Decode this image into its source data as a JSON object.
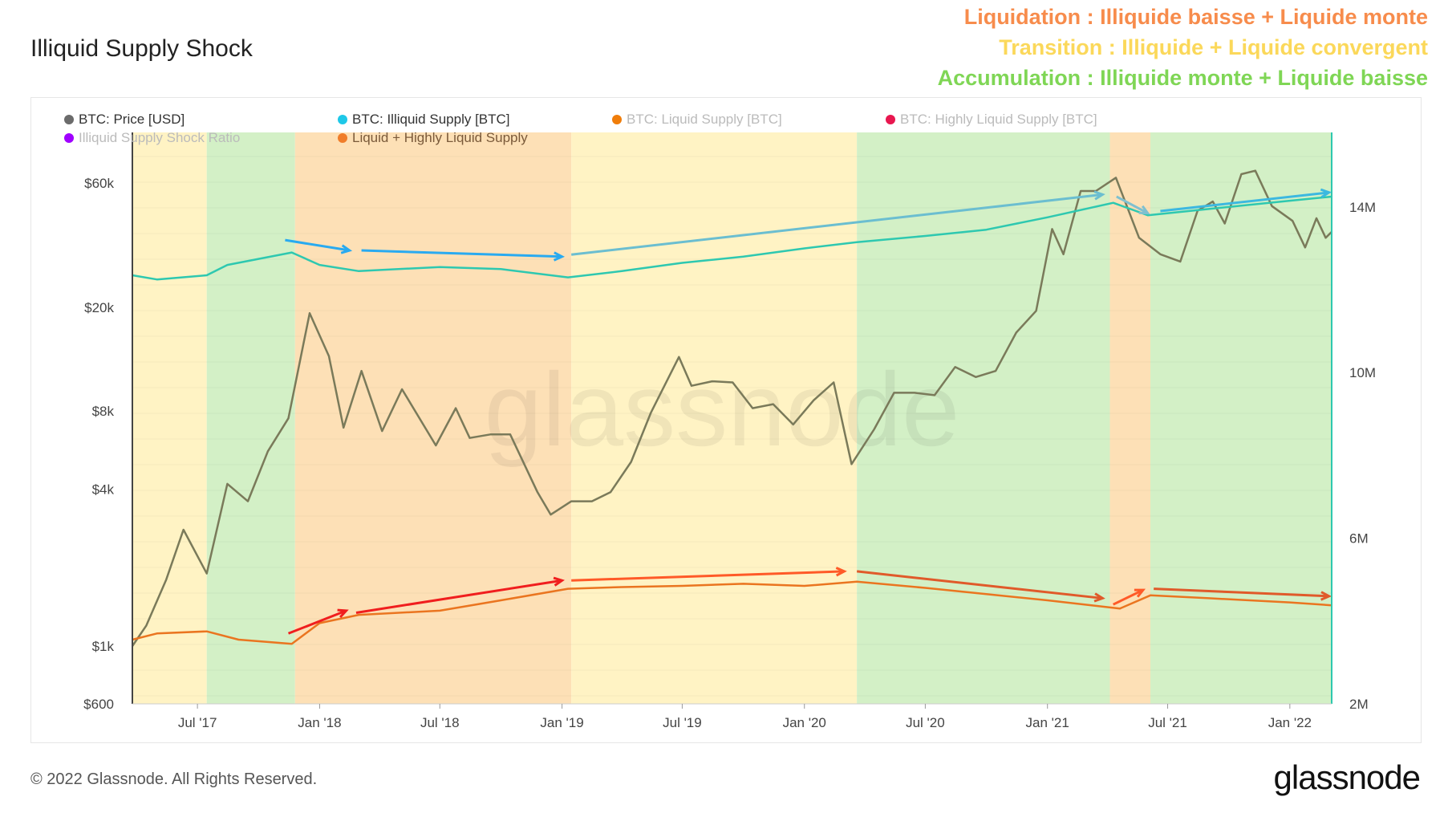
{
  "title": "Illiquid Supply Shock",
  "notes": [
    {
      "text": "Liquidation : Illiquide baisse + Liquide monte",
      "color": "#f78c4c"
    },
    {
      "text": "Transition : Illiquide + Liquide convergent",
      "color": "#fbd85a"
    },
    {
      "text": "Accumulation : Illiquide monte + Liquide baisse",
      "color": "#7fd655"
    }
  ],
  "legend": [
    {
      "label": "BTC: Price [USD]",
      "color": "#6b6b6b",
      "active": true
    },
    {
      "label": "BTC: Illiquid Supply [BTC]",
      "color": "#1ec8e8",
      "active": true
    },
    {
      "label": "BTC: Liquid Supply [BTC]",
      "color": "#f07d0a",
      "active": false
    },
    {
      "label": "BTC: Highly Liquid Supply [BTC]",
      "color": "#e8174f",
      "active": false
    },
    {
      "label": "Illiquid Supply Shock Ratio",
      "color": "#a000ff",
      "active": false
    },
    {
      "label": "Liquid + Highly Liquid Supply",
      "color": "#f07d2a",
      "active": true
    }
  ],
  "footer": {
    "copyright": "© 2022 Glassnode. All Rights Reserved.",
    "logo": "glassnode"
  },
  "watermark": "glassnode",
  "chart_data": {
    "type": "line",
    "xrange": [
      "2017-03-25",
      "2022-03-05"
    ],
    "x_ticks": [
      [
        "2017-07-01",
        "Jul '17"
      ],
      [
        "2018-01-01",
        "Jan '18"
      ],
      [
        "2018-07-01",
        "Jul '18"
      ],
      [
        "2019-01-01",
        "Jan '19"
      ],
      [
        "2019-07-01",
        "Jul '19"
      ],
      [
        "2020-01-01",
        "Jan '20"
      ],
      [
        "2020-07-01",
        "Jul '20"
      ],
      [
        "2021-01-01",
        "Jan '21"
      ],
      [
        "2021-07-01",
        "Jul '21"
      ],
      [
        "2022-01-01",
        "Jan '22"
      ]
    ],
    "y_left": {
      "scale": "log",
      "range": [
        600,
        94000
      ],
      "ticks": [
        [
          60000,
          "$60k"
        ],
        [
          20000,
          "$20k"
        ],
        [
          8000,
          "$8k"
        ],
        [
          4000,
          "$4k"
        ],
        [
          1000,
          "$1k"
        ],
        [
          600,
          "$600"
        ]
      ]
    },
    "y_right": {
      "scale": "linear",
      "range": [
        2,
        15.8
      ],
      "unit": "M",
      "ticks": [
        [
          14,
          "14M"
        ],
        [
          10,
          "10M"
        ],
        [
          6,
          "6M"
        ],
        [
          2,
          "2M"
        ]
      ]
    },
    "phases": [
      {
        "from": "2017-03-25",
        "to": "2017-07-15",
        "phase": "transition",
        "color": "#fff3c4"
      },
      {
        "from": "2017-07-15",
        "to": "2017-11-25",
        "phase": "accumulation",
        "color": "#d3f0c6"
      },
      {
        "from": "2017-11-25",
        "to": "2019-01-15",
        "phase": "liquidation",
        "color": "#fde0b6"
      },
      {
        "from": "2019-01-15",
        "to": "2020-03-20",
        "phase": "transition",
        "color": "#fff3c4"
      },
      {
        "from": "2020-03-20",
        "to": "2021-04-05",
        "phase": "accumulation",
        "color": "#d3f0c6"
      },
      {
        "from": "2021-04-05",
        "to": "2021-06-05",
        "phase": "liquidation",
        "color": "#fde0b6"
      },
      {
        "from": "2021-06-05",
        "to": "2022-03-05",
        "phase": "accumulation",
        "color": "#d3f0c6"
      }
    ],
    "series": [
      {
        "name": "BTC: Price [USD]",
        "axis": "left",
        "color": "#7a7a5a",
        "points": [
          [
            "2017-03-25",
            1000
          ],
          [
            "2017-04-15",
            1200
          ],
          [
            "2017-05-15",
            1800
          ],
          [
            "2017-06-10",
            2800
          ],
          [
            "2017-07-15",
            1900
          ],
          [
            "2017-08-15",
            4200
          ],
          [
            "2017-09-15",
            3600
          ],
          [
            "2017-10-15",
            5600
          ],
          [
            "2017-11-15",
            7500
          ],
          [
            "2017-12-17",
            19000
          ],
          [
            "2018-01-15",
            13000
          ],
          [
            "2018-02-06",
            6900
          ],
          [
            "2018-03-05",
            11400
          ],
          [
            "2018-04-05",
            6700
          ],
          [
            "2018-05-05",
            9700
          ],
          [
            "2018-06-25",
            5900
          ],
          [
            "2018-07-25",
            8200
          ],
          [
            "2018-08-15",
            6300
          ],
          [
            "2018-09-15",
            6500
          ],
          [
            "2018-10-15",
            6500
          ],
          [
            "2018-11-25",
            3900
          ],
          [
            "2018-12-15",
            3200
          ],
          [
            "2019-01-15",
            3600
          ],
          [
            "2019-02-15",
            3600
          ],
          [
            "2019-03-15",
            3900
          ],
          [
            "2019-04-15",
            5100
          ],
          [
            "2019-05-15",
            7900
          ],
          [
            "2019-06-26",
            12900
          ],
          [
            "2019-07-15",
            10000
          ],
          [
            "2019-08-15",
            10400
          ],
          [
            "2019-09-15",
            10300
          ],
          [
            "2019-10-15",
            8200
          ],
          [
            "2019-11-15",
            8500
          ],
          [
            "2019-12-15",
            7100
          ],
          [
            "2020-01-15",
            8800
          ],
          [
            "2020-02-14",
            10300
          ],
          [
            "2020-03-12",
            5000
          ],
          [
            "2020-04-15",
            6800
          ],
          [
            "2020-05-15",
            9400
          ],
          [
            "2020-06-15",
            9400
          ],
          [
            "2020-07-15",
            9200
          ],
          [
            "2020-08-15",
            11800
          ],
          [
            "2020-09-15",
            10800
          ],
          [
            "2020-10-15",
            11400
          ],
          [
            "2020-11-15",
            16000
          ],
          [
            "2020-12-15",
            19400
          ],
          [
            "2021-01-08",
            40000
          ],
          [
            "2021-01-25",
            32000
          ],
          [
            "2021-02-20",
            56000
          ],
          [
            "2021-03-15",
            56000
          ],
          [
            "2021-04-14",
            63000
          ],
          [
            "2021-05-19",
            37000
          ],
          [
            "2021-06-20",
            32000
          ],
          [
            "2021-07-20",
            30000
          ],
          [
            "2021-08-15",
            47000
          ],
          [
            "2021-09-07",
            51000
          ],
          [
            "2021-09-25",
            42000
          ],
          [
            "2021-10-20",
            65000
          ],
          [
            "2021-11-10",
            67000
          ],
          [
            "2021-12-05",
            49000
          ],
          [
            "2022-01-05",
            43000
          ],
          [
            "2022-01-24",
            34000
          ],
          [
            "2022-02-10",
            44000
          ],
          [
            "2022-02-24",
            37000
          ],
          [
            "2022-03-05",
            39000
          ]
        ]
      },
      {
        "name": "BTC: Illiquid Supply [BTC]",
        "axis": "right",
        "color": "#2ec8b0",
        "points": [
          [
            "2017-03-25",
            12.35
          ],
          [
            "2017-05-01",
            12.25
          ],
          [
            "2017-07-15",
            12.35
          ],
          [
            "2017-08-15",
            12.6
          ],
          [
            "2017-11-20",
            12.9
          ],
          [
            "2018-01-01",
            12.6
          ],
          [
            "2018-03-01",
            12.45
          ],
          [
            "2018-07-01",
            12.55
          ],
          [
            "2018-10-01",
            12.5
          ],
          [
            "2019-01-10",
            12.3
          ],
          [
            "2019-04-01",
            12.45
          ],
          [
            "2019-07-01",
            12.65
          ],
          [
            "2019-10-01",
            12.8
          ],
          [
            "2020-01-01",
            13.0
          ],
          [
            "2020-03-20",
            13.15
          ],
          [
            "2020-07-01",
            13.3
          ],
          [
            "2020-10-01",
            13.45
          ],
          [
            "2021-01-01",
            13.75
          ],
          [
            "2021-04-10",
            14.1
          ],
          [
            "2021-06-01",
            13.8
          ],
          [
            "2021-09-01",
            13.95
          ],
          [
            "2022-01-01",
            14.15
          ],
          [
            "2022-03-05",
            14.25
          ]
        ]
      },
      {
        "name": "Liquid + Highly Liquid Supply",
        "axis": "right",
        "color": "#ea7520",
        "points": [
          [
            "2017-03-25",
            3.55
          ],
          [
            "2017-05-01",
            3.7
          ],
          [
            "2017-07-15",
            3.75
          ],
          [
            "2017-09-01",
            3.55
          ],
          [
            "2017-11-20",
            3.45
          ],
          [
            "2018-01-01",
            3.95
          ],
          [
            "2018-03-01",
            4.15
          ],
          [
            "2018-07-01",
            4.25
          ],
          [
            "2018-10-01",
            4.5
          ],
          [
            "2019-01-10",
            4.78
          ],
          [
            "2019-04-01",
            4.82
          ],
          [
            "2019-07-01",
            4.85
          ],
          [
            "2019-10-01",
            4.9
          ],
          [
            "2020-01-01",
            4.85
          ],
          [
            "2020-03-20",
            4.95
          ],
          [
            "2020-07-01",
            4.8
          ],
          [
            "2020-10-01",
            4.65
          ],
          [
            "2021-01-01",
            4.5
          ],
          [
            "2021-04-20",
            4.3
          ],
          [
            "2021-06-05",
            4.62
          ],
          [
            "2021-09-01",
            4.55
          ],
          [
            "2022-01-01",
            4.45
          ],
          [
            "2022-03-05",
            4.38
          ]
        ]
      }
    ],
    "annotations": [
      {
        "axis": "right",
        "color": "#29aaf0",
        "from": [
          "2017-11-10",
          13.2
        ],
        "to": [
          "2018-02-15",
          12.95
        ]
      },
      {
        "axis": "right",
        "color": "#29aaf0",
        "from": [
          "2018-03-05",
          12.95
        ],
        "to": [
          "2019-01-01",
          12.8
        ]
      },
      {
        "axis": "right",
        "color": "#6bbed0",
        "from": [
          "2019-01-15",
          12.85
        ],
        "to": [
          "2021-03-25",
          14.3
        ]
      },
      {
        "axis": "right",
        "color": "#7fc0d0",
        "from": [
          "2021-04-15",
          14.25
        ],
        "to": [
          "2021-06-01",
          13.85
        ]
      },
      {
        "axis": "right",
        "color": "#3cb8e0",
        "from": [
          "2021-06-20",
          13.9
        ],
        "to": [
          "2022-03-01",
          14.35
        ]
      },
      {
        "axis": "right",
        "color": "#f01e1e",
        "from": [
          "2017-11-15",
          3.7
        ],
        "to": [
          "2018-02-10",
          4.25
        ]
      },
      {
        "axis": "right",
        "color": "#f01e1e",
        "from": [
          "2018-02-25",
          4.2
        ],
        "to": [
          "2019-01-01",
          4.98
        ]
      },
      {
        "axis": "right",
        "color": "#ff5a28",
        "from": [
          "2019-01-15",
          4.98
        ],
        "to": [
          "2020-03-01",
          5.2
        ]
      },
      {
        "axis": "right",
        "color": "#e05a2a",
        "from": [
          "2020-03-20",
          5.2
        ],
        "to": [
          "2021-03-25",
          4.55
        ]
      },
      {
        "axis": "right",
        "color": "#ff5a28",
        "from": [
          "2021-04-10",
          4.4
        ],
        "to": [
          "2021-05-25",
          4.75
        ]
      },
      {
        "axis": "right",
        "color": "#e05a2a",
        "from": [
          "2021-06-10",
          4.78
        ],
        "to": [
          "2022-03-01",
          4.6
        ]
      }
    ]
  }
}
